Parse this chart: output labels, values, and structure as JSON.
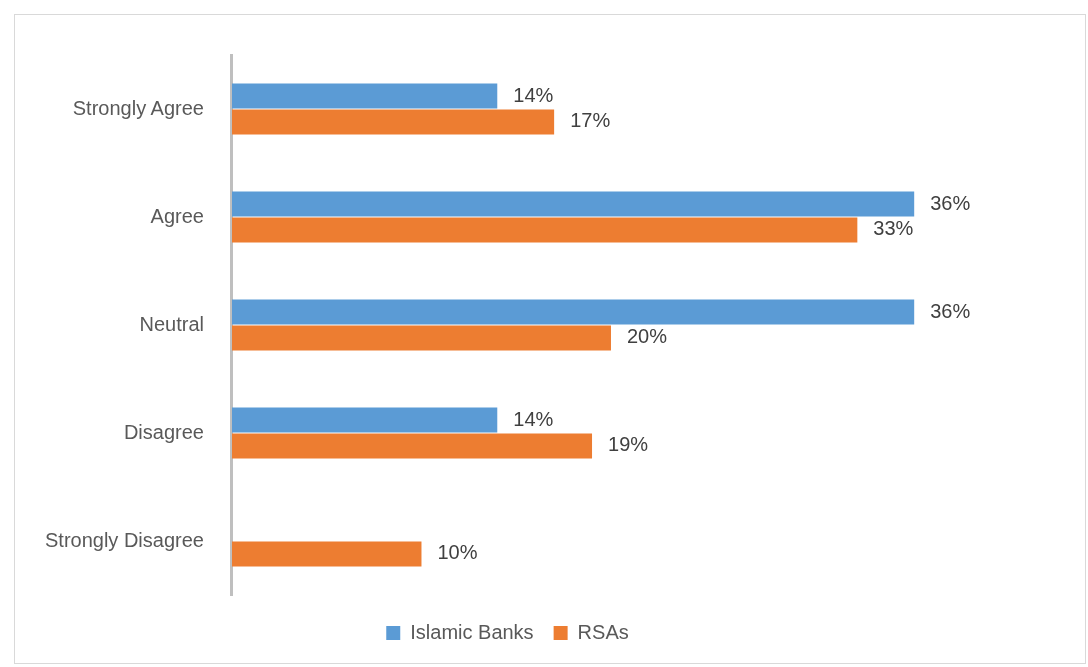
{
  "chart_data": {
    "type": "bar",
    "orientation": "horizontal",
    "categories": [
      "Strongly Agree",
      "Agree",
      "Neutral",
      "Disagree",
      "Strongly Disagree"
    ],
    "series": [
      {
        "name": "Islamic Banks",
        "color": "#5b9bd5",
        "values": [
          14,
          36,
          36,
          14,
          null
        ],
        "value_labels": [
          "14%",
          "36%",
          "36%",
          "14%",
          null
        ]
      },
      {
        "name": "RSAs",
        "color": "#ed7d31",
        "values": [
          17,
          33,
          20,
          19,
          10
        ],
        "value_labels": [
          "17%",
          "33%",
          "20%",
          "19%",
          "10%"
        ]
      }
    ],
    "legend": "bottom",
    "grid": false
  }
}
